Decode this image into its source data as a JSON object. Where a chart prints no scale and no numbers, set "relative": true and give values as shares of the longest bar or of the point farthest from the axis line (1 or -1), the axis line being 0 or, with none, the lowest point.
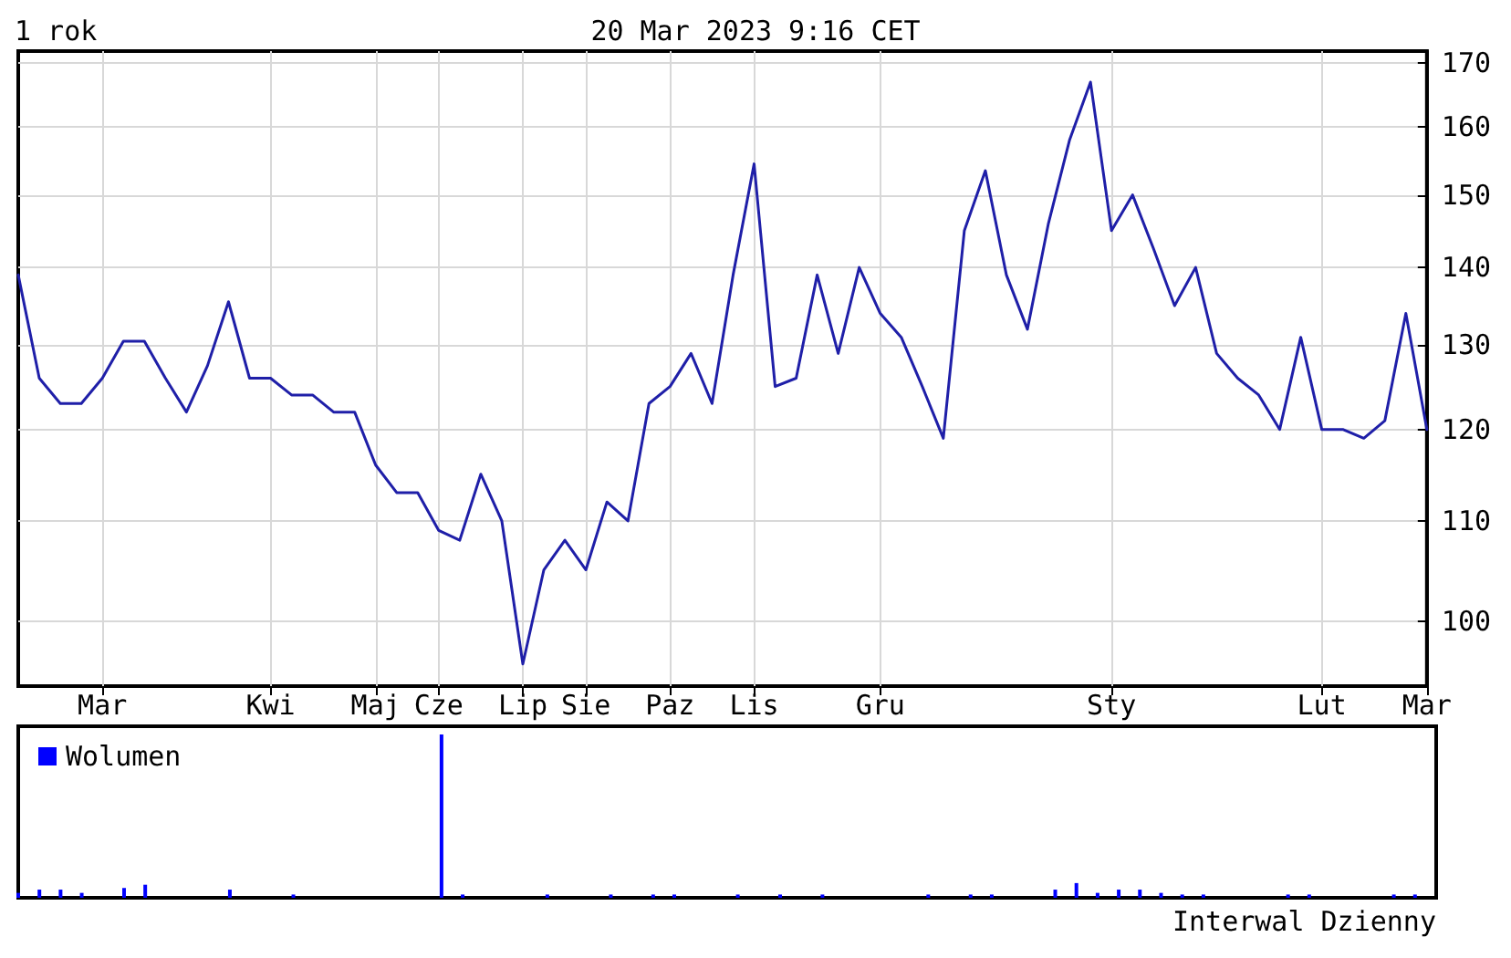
{
  "chart_data": [
    {
      "type": "line",
      "title": "1 rok",
      "subtitle": "20 Mar 2023 9:16 CET",
      "annotations": [
        "Interwal Dzienny"
      ],
      "categories": [
        null,
        null,
        null,
        null,
        "Mar",
        null,
        null,
        null,
        null,
        null,
        null,
        null,
        "Kwi",
        null,
        null,
        null,
        null,
        "Maj",
        null,
        null,
        "Cze",
        null,
        null,
        null,
        "Lip",
        null,
        null,
        "Sie",
        null,
        null,
        null,
        "Paz",
        null,
        null,
        null,
        "Lis",
        null,
        null,
        null,
        null,
        null,
        "Gru",
        null,
        null,
        null,
        null,
        null,
        null,
        null,
        null,
        null,
        null,
        "Sty",
        null,
        null,
        null,
        null,
        null,
        null,
        null,
        null,
        null,
        "Lut",
        null,
        null,
        null,
        null,
        "Mar"
      ],
      "series": [
        {
          "color": "#1f1fa8",
          "values": [
            139,
            126,
            123,
            123,
            126,
            130.5,
            130.5,
            126,
            122,
            127.5,
            135.5,
            126,
            126,
            124,
            124,
            122,
            122,
            116,
            113,
            113,
            109,
            108,
            115,
            110,
            96,
            105,
            108,
            105,
            112,
            110,
            123,
            125,
            129,
            123,
            139,
            154.5,
            125,
            126,
            139,
            129,
            140,
            134,
            131,
            125,
            119,
            145,
            153.5,
            139,
            132,
            146,
            158,
            167,
            145,
            150,
            142.5,
            135,
            140,
            129,
            126,
            124,
            120,
            131,
            120,
            120,
            119,
            121,
            134,
            120
          ]
        }
      ],
      "log": true,
      "ylim": [
        94,
        172
      ],
      "yticks": [
        100,
        110,
        120,
        130,
        140,
        150,
        160,
        170
      ],
      "grid": true,
      "legend": false,
      "marker": "none",
      "line_style": "solid"
    },
    {
      "type": "bar",
      "relative": true,
      "legend": "top left",
      "categories": [
        null,
        null,
        null,
        null,
        null,
        null,
        null,
        null,
        null,
        null,
        null,
        null,
        null,
        null,
        null,
        null,
        null,
        null,
        null,
        null,
        null,
        null,
        null,
        null,
        null,
        null,
        null,
        null,
        null,
        null,
        null,
        null,
        null,
        null,
        null,
        null,
        null,
        null,
        null,
        null,
        null,
        null,
        null,
        null,
        null,
        null,
        null,
        null,
        null,
        null,
        null,
        null,
        null,
        null,
        null,
        null,
        null,
        null,
        null,
        null,
        null,
        null,
        null,
        null,
        null,
        null,
        null,
        null
      ],
      "series": [
        {
          "name": "Wolumen",
          "color": "#0000ff",
          "values": [
            0.03,
            0.05,
            0.05,
            0.03,
            0,
            0.06,
            0.08,
            0,
            0,
            0,
            0.05,
            0,
            0,
            0.02,
            0,
            0,
            0,
            0,
            0,
            0,
            1,
            0.02,
            0,
            0,
            0,
            0.02,
            0,
            0,
            0.02,
            0,
            0.02,
            0.02,
            0,
            0,
            0.02,
            0,
            0.02,
            0,
            0.02,
            0,
            0,
            0,
            0,
            0.02,
            0,
            0.02,
            0.02,
            0,
            0,
            0.05,
            0.09,
            0.03,
            0.05,
            0.05,
            0.03,
            0.02,
            0.02,
            0,
            0,
            0,
            0.02,
            0.02,
            0,
            0,
            0,
            0.02,
            0.02,
            0
          ]
        }
      ]
    }
  ]
}
